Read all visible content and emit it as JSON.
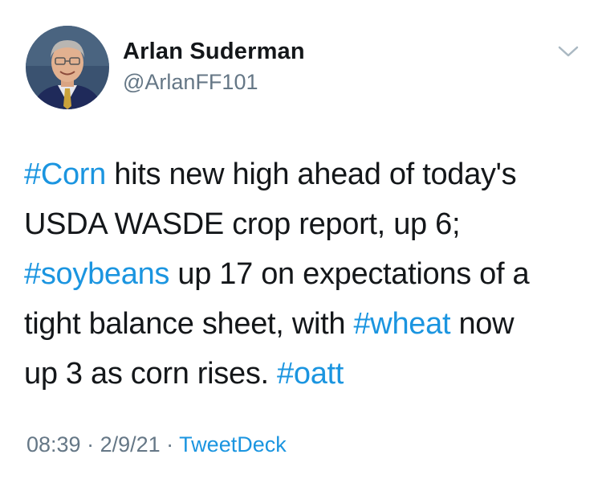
{
  "author": {
    "name": "Arlan Suderman",
    "handle": "@ArlanFF101"
  },
  "menu": {
    "icon": "chevron-down-icon"
  },
  "tweet": {
    "lines": [
      [
        {
          "text": "#Corn",
          "tag": true
        },
        {
          "text": " hits new high ahead of today's",
          "tag": false
        }
      ],
      [
        {
          "text": "USDA WASDE crop report, up 6;",
          "tag": false
        }
      ],
      [
        {
          "text": "#soybeans",
          "tag": true
        },
        {
          "text": " up 17 on expectations of a",
          "tag": false
        }
      ],
      [
        {
          "text": "tight balance sheet, with ",
          "tag": false
        },
        {
          "text": "#wheat",
          "tag": true
        },
        {
          "text": " now",
          "tag": false
        }
      ],
      [
        {
          "text": "up 3 as corn rises. ",
          "tag": false
        },
        {
          "text": "#oatt",
          "tag": true
        }
      ]
    ]
  },
  "meta": {
    "time": "08:39",
    "sep1": " · ",
    "date": "2/9/21",
    "sep2": " · ",
    "source": "TweetDeck"
  },
  "colors": {
    "link": "#1b95e0",
    "secondary": "#657786",
    "text": "#14171a"
  }
}
